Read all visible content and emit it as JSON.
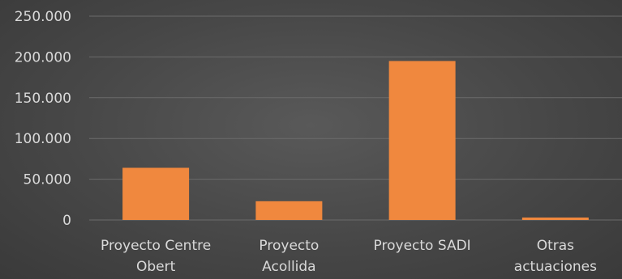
{
  "chart_data": {
    "type": "bar",
    "categories": [
      [
        "Proyecto Centre",
        "Obert"
      ],
      [
        "Proyecto",
        "Acollida"
      ],
      [
        "Proyecto SADI"
      ],
      [
        "Otras",
        "actuaciones"
      ]
    ],
    "values": [
      64000,
      23000,
      195000,
      3000
    ],
    "ylim": [
      0,
      250000
    ],
    "yticks": [
      0,
      50000,
      100000,
      150000,
      200000,
      250000
    ],
    "ytick_labels": [
      "0",
      "50.000",
      "100.000",
      "150.000",
      "200.000",
      "250.000"
    ],
    "grid": true,
    "legend": "none",
    "colors": {
      "bar": "#f0883e",
      "grid": "#6b6b6b",
      "text": "#d9d9d9",
      "background": "#484848"
    }
  }
}
